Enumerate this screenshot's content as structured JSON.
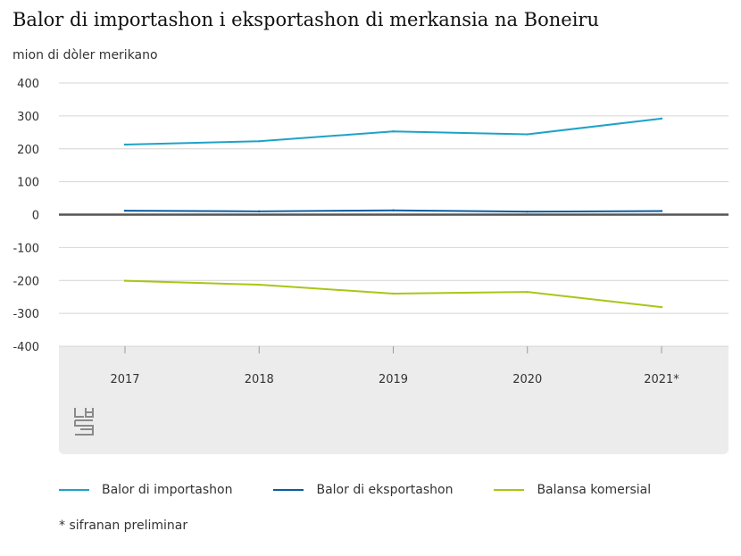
{
  "chart_data": {
    "type": "line",
    "title": "Balor di importashon i eksportashon di merkansia na Boneiru",
    "ylabel": "mion di dòler merikano",
    "xlabel": "",
    "categories": [
      "2017",
      "2018",
      "2019",
      "2020",
      "2021*"
    ],
    "ylim": [
      -400,
      400
    ],
    "yticks": [
      400,
      300,
      200,
      100,
      0,
      -100,
      -200,
      -300,
      -400
    ],
    "grid": true,
    "legend_position": "bottom",
    "series": [
      {
        "name": "Balor di importashon",
        "color": "#1fa2c8",
        "values": [
          213,
          223,
          253,
          244,
          292
        ]
      },
      {
        "name": "Balor di eksportashon",
        "color": "#0b5c9e",
        "values": [
          12,
          10,
          13,
          9,
          11
        ]
      },
      {
        "name": "Balansa komersial",
        "color": "#a9c615",
        "values": [
          -201,
          -213,
          -240,
          -235,
          -281
        ]
      }
    ],
    "footnote": "* sifranan preliminar"
  },
  "colors": {
    "grid": "#d4d4d4",
    "zero_line": "#555555",
    "panel": "#ececec"
  },
  "logo": {
    "icon": "cbs-logo-icon"
  }
}
